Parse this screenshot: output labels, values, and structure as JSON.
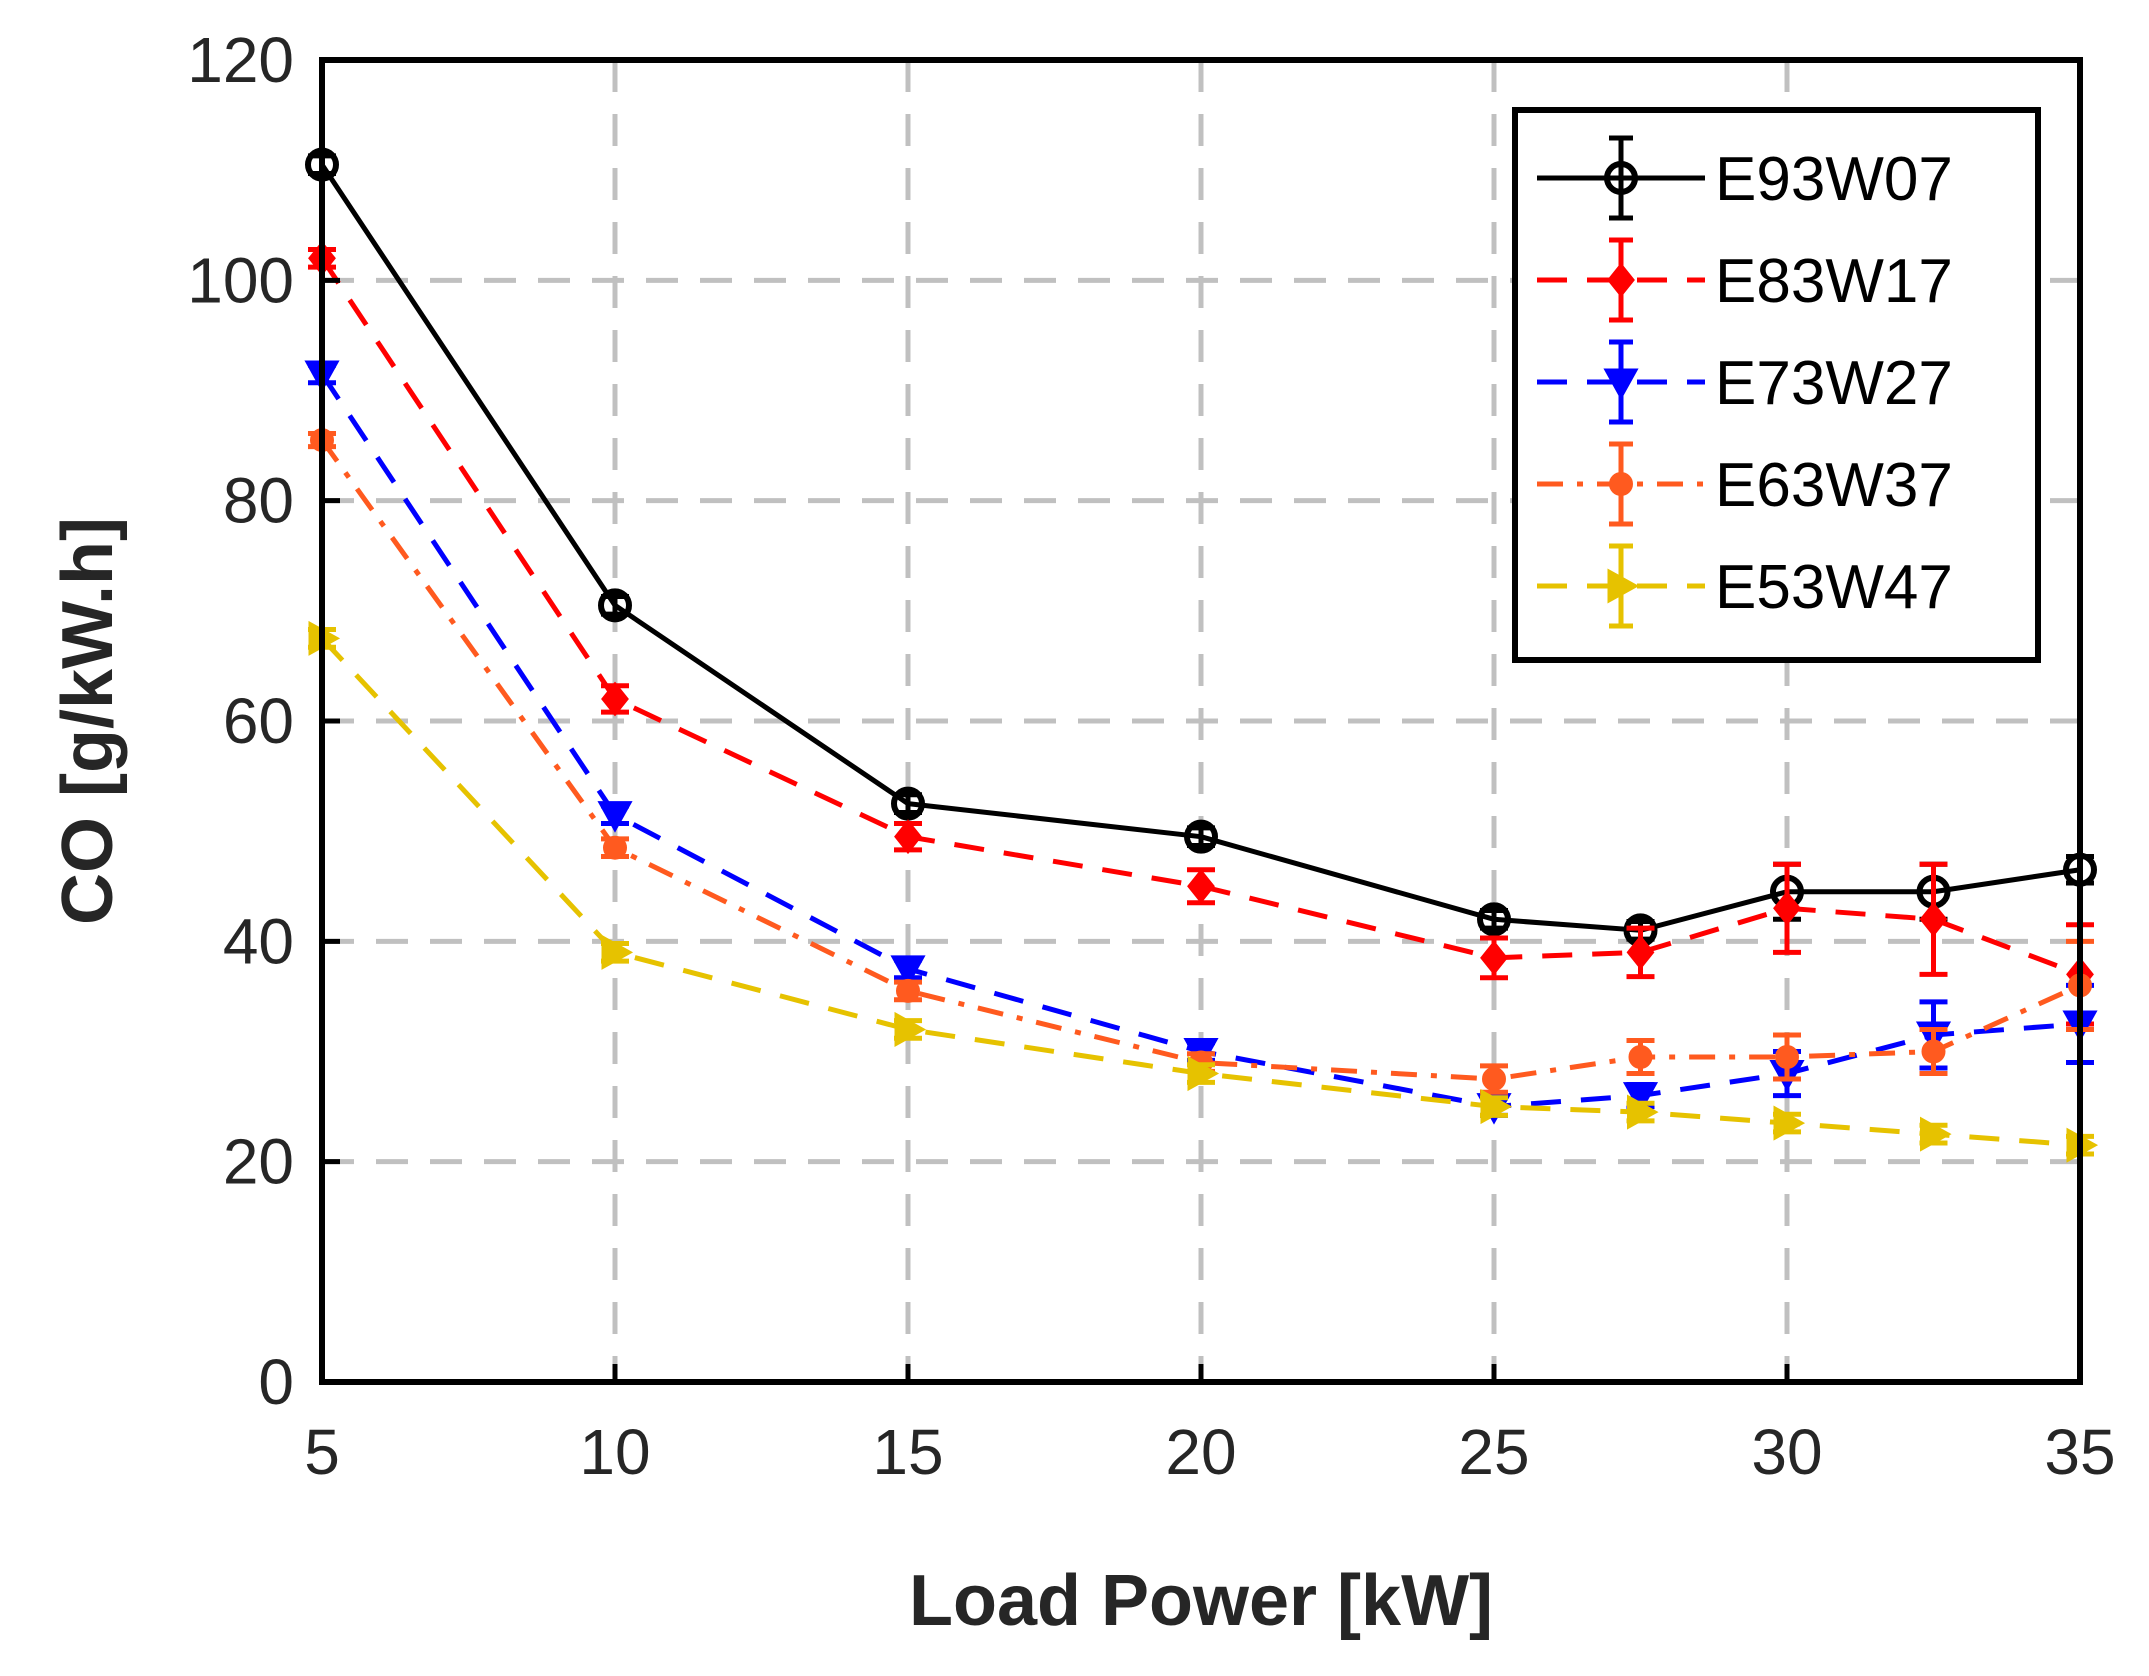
{
  "chart_data": {
    "type": "line",
    "title": "",
    "xlabel": "Load Power [kW]",
    "ylabel": "CO [g/kW.h]",
    "xlim": [
      5,
      35
    ],
    "ylim": [
      0,
      120
    ],
    "xticks": [
      5,
      10,
      15,
      20,
      25,
      30,
      35
    ],
    "yticks": [
      0,
      20,
      40,
      60,
      80,
      100,
      120
    ],
    "grid": true,
    "legend_position": "top-right",
    "x": [
      5,
      10,
      15,
      20,
      25,
      27.5,
      30,
      32.5,
      35
    ],
    "series": [
      {
        "name": "E93W07",
        "color": "#000000",
        "line_style": "solid",
        "marker": "circle-open",
        "values": [
          110.5,
          70.5,
          52.5,
          49.5,
          42,
          41,
          44.5,
          44.5,
          46.5
        ],
        "errors": [
          0.8,
          0.8,
          0.8,
          0.8,
          0.8,
          0.8,
          2.5,
          2.5,
          1.2
        ]
      },
      {
        "name": "E83W17",
        "color": "#ff0000",
        "line_style": "dashed",
        "marker": "diamond",
        "values": [
          102,
          62,
          49.5,
          45,
          38.5,
          39,
          43,
          42,
          37
        ],
        "errors": [
          0.8,
          1.2,
          1.2,
          1.5,
          1.8,
          2.2,
          4.0,
          5.0,
          4.5
        ]
      },
      {
        "name": "E73W27",
        "color": "#0000ff",
        "line_style": "dashed",
        "marker": "triangle-down",
        "values": [
          91.5,
          51.5,
          37.5,
          30,
          25,
          26,
          28,
          31.5,
          32.5
        ],
        "errors": [
          0.8,
          0.8,
          0.8,
          0.8,
          0.8,
          1.0,
          2.0,
          3.0,
          3.5
        ]
      },
      {
        "name": "E63W37",
        "color": "#ff5a1f",
        "line_style": "dash-dot",
        "marker": "dot",
        "values": [
          85.5,
          48.5,
          35.5,
          29,
          27.5,
          29.5,
          29.5,
          30,
          36
        ],
        "errors": [
          0.6,
          0.8,
          0.8,
          0.8,
          1.2,
          1.5,
          2.0,
          2.0,
          4.0
        ]
      },
      {
        "name": "E53W47",
        "color": "#e6c200",
        "line_style": "dashed",
        "marker": "triangle-right",
        "values": [
          67.5,
          39,
          32,
          28,
          25,
          24.5,
          23.5,
          22.5,
          21.5
        ],
        "errors": [
          0.8,
          0.8,
          0.8,
          0.8,
          0.8,
          0.8,
          0.8,
          0.8,
          0.8
        ]
      }
    ]
  }
}
